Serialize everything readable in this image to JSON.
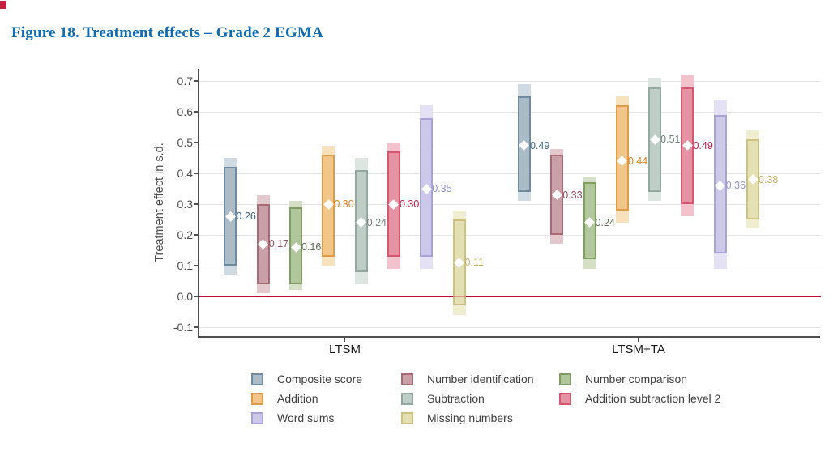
{
  "figure_title": "Figure 18. Treatment effects – Grade 2 EGMA",
  "accent_colors": {
    "title_blue": "#0f6cb2",
    "zero_line_red": "#bf0b35",
    "corner_mark_red": "#c41f3e",
    "axis_gray": "#4f4f4f",
    "gridline_gray": "#e5e5e5",
    "tick_text_gray": "#4d4d4d"
  },
  "chart_data": {
    "type": "bar",
    "variant": "treatment-effect point estimates (white diamonds) with inner and outer confidence-interval bars",
    "title": "",
    "xlabel": "",
    "ylabel": "Treatment effect in s.d.",
    "ylim": [
      -0.13,
      0.74
    ],
    "grid": "horizontal major gridlines",
    "yticks": [
      {
        "value": -0.1,
        "label": "-0.1"
      },
      {
        "value": 0.0,
        "label": "0.0"
      },
      {
        "value": 0.1,
        "label": "0.1"
      },
      {
        "value": 0.2,
        "label": "0.2"
      },
      {
        "value": 0.3,
        "label": "0.3"
      },
      {
        "value": 0.4,
        "label": "0.4"
      },
      {
        "value": 0.5,
        "label": "0.5"
      },
      {
        "value": 0.6,
        "label": "0.6"
      },
      {
        "value": 0.7,
        "label": "0.7"
      }
    ],
    "categories": [
      "LTSM",
      "LTSM+TA"
    ],
    "zero_reference_line": 0.0,
    "series": [
      {
        "name": "Composite score",
        "color": {
          "stroke": "#6e8ba2",
          "fill": "#abbcc9",
          "outer": "#d0dae2",
          "label": "#3d6480"
        },
        "points": [
          {
            "group": "LTSM",
            "estimate": 0.26,
            "label": "0.26",
            "inner_ci": [
              0.1,
              0.42
            ],
            "outer_ci": [
              0.07,
              0.45
            ]
          },
          {
            "group": "LTSM+TA",
            "estimate": 0.49,
            "label": "0.49",
            "inner_ci": [
              0.34,
              0.65
            ],
            "outer_ci": [
              0.31,
              0.69
            ]
          }
        ]
      },
      {
        "name": "Number identification",
        "color": {
          "stroke": "#a96a74",
          "fill": "#c9a0a7",
          "outer": "#e3c9cd",
          "label": "#9a4b5f"
        },
        "points": [
          {
            "group": "LTSM",
            "estimate": 0.17,
            "label": "0.17",
            "inner_ci": [
              0.04,
              0.3
            ],
            "outer_ci": [
              0.01,
              0.33
            ]
          },
          {
            "group": "LTSM+TA",
            "estimate": 0.33,
            "label": "0.33",
            "inner_ci": [
              0.2,
              0.46
            ],
            "outer_ci": [
              0.17,
              0.48
            ]
          }
        ]
      },
      {
        "name": "Number comparison",
        "color": {
          "stroke": "#7f9c63",
          "fill": "#b2c69c",
          "outer": "#d5dfc6",
          "label": "#5c6e52"
        },
        "points": [
          {
            "group": "LTSM",
            "estimate": 0.16,
            "label": "0.16",
            "inner_ci": [
              0.04,
              0.29
            ],
            "outer_ci": [
              0.02,
              0.31
            ]
          },
          {
            "group": "LTSM+TA",
            "estimate": 0.24,
            "label": "0.24",
            "inner_ci": [
              0.12,
              0.37
            ],
            "outer_ci": [
              0.09,
              0.39
            ]
          }
        ]
      },
      {
        "name": "Addition",
        "color": {
          "stroke": "#e09b45",
          "fill": "#f2c588",
          "outer": "#f8e1bd",
          "label": "#e0821b"
        },
        "points": [
          {
            "group": "LTSM",
            "estimate": 0.3,
            "label": "0.30",
            "inner_ci": [
              0.13,
              0.46
            ],
            "outer_ci": [
              0.1,
              0.49
            ]
          },
          {
            "group": "LTSM+TA",
            "estimate": 0.44,
            "label": "0.44",
            "inner_ci": [
              0.28,
              0.62
            ],
            "outer_ci": [
              0.24,
              0.65
            ]
          }
        ]
      },
      {
        "name": "Subtraction",
        "color": {
          "stroke": "#92a8a0",
          "fill": "#bfcdc7",
          "outer": "#dde5e1",
          "label": "#73807b"
        },
        "points": [
          {
            "group": "LTSM",
            "estimate": 0.24,
            "label": "0.24",
            "inner_ci": [
              0.08,
              0.41
            ],
            "outer_ci": [
              0.04,
              0.45
            ]
          },
          {
            "group": "LTSM+TA",
            "estimate": 0.51,
            "label": "0.51",
            "inner_ci": [
              0.34,
              0.68
            ],
            "outer_ci": [
              0.31,
              0.71
            ]
          }
        ]
      },
      {
        "name": "Addition subtraction level 2",
        "color": {
          "stroke": "#d4566f",
          "fill": "#e592a3",
          "outer": "#f3c3cd",
          "label": "#c0204a"
        },
        "points": [
          {
            "group": "LTSM",
            "estimate": 0.3,
            "label": "0.30",
            "inner_ci": [
              0.13,
              0.47
            ],
            "outer_ci": [
              0.09,
              0.5
            ]
          },
          {
            "group": "LTSM+TA",
            "estimate": 0.49,
            "label": "0.49",
            "inner_ci": [
              0.3,
              0.68
            ],
            "outer_ci": [
              0.26,
              0.72
            ]
          }
        ]
      },
      {
        "name": "Word sums",
        "color": {
          "stroke": "#a8a2d5",
          "fill": "#cbc8e9",
          "outer": "#e3e1f3",
          "label": "#9195cd"
        },
        "points": [
          {
            "group": "LTSM",
            "estimate": 0.35,
            "label": "0.35",
            "inner_ci": [
              0.13,
              0.58
            ],
            "outer_ci": [
              0.09,
              0.62
            ]
          },
          {
            "group": "LTSM+TA",
            "estimate": 0.36,
            "label": "0.36",
            "inner_ci": [
              0.14,
              0.59
            ],
            "outer_ci": [
              0.09,
              0.64
            ]
          }
        ]
      },
      {
        "name": "Missing numbers",
        "color": {
          "stroke": "#cec27f",
          "fill": "#e5e0b3",
          "outer": "#f0edd1",
          "label": "#c0b363"
        },
        "points": [
          {
            "group": "LTSM",
            "estimate": 0.11,
            "label": "0.11",
            "inner_ci": [
              -0.03,
              0.25
            ],
            "outer_ci": [
              -0.06,
              0.28
            ]
          },
          {
            "group": "LTSM+TA",
            "estimate": 0.38,
            "label": "0.38",
            "inner_ci": [
              0.25,
              0.51
            ],
            "outer_ci": [
              0.22,
              0.54
            ]
          }
        ]
      }
    ],
    "legend": {
      "position": "bottom",
      "columns": [
        [
          "Composite score",
          "Addition",
          "Word sums"
        ],
        [
          "Number identification",
          "Subtraction",
          "Missing numbers"
        ],
        [
          "Number comparison",
          "Addition subtraction level 2"
        ]
      ]
    }
  }
}
